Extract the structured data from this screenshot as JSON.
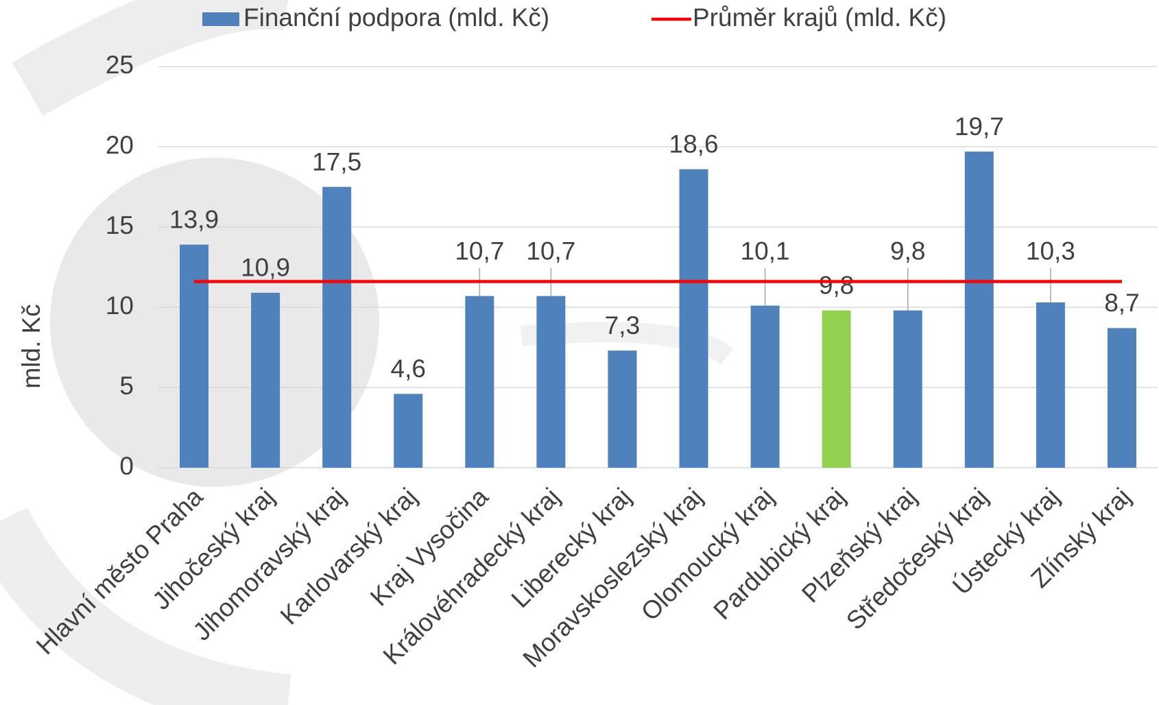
{
  "chart_data": {
    "type": "bar",
    "y_label": "mld. Kč",
    "categories": [
      "Hlavní město Praha",
      "Jihočeský kraj",
      "Jihomoravský kraj",
      "Karlovarský kraj",
      "Kraj Vysočina",
      "Královéhradecký kraj",
      "Liberecký kraj",
      "Moravskoslezský kraj",
      "Olomoucký kraj",
      "Pardubický kraj",
      "Plzeňský kraj",
      "Středočeský kraj",
      "Ústecký kraj",
      "Zlínský kraj"
    ],
    "series": [
      {
        "name": "Finanční podpora (mld. Kč)",
        "type": "bar",
        "color": "#4f81bd",
        "colors": [
          "#4f81bd",
          "#4f81bd",
          "#4f81bd",
          "#4f81bd",
          "#4f81bd",
          "#4f81bd",
          "#4f81bd",
          "#4f81bd",
          "#4f81bd",
          "#92d050",
          "#4f81bd",
          "#4f81bd",
          "#4f81bd",
          "#4f81bd"
        ],
        "values": [
          13.9,
          10.9,
          17.5,
          4.6,
          10.7,
          10.7,
          7.3,
          18.6,
          10.1,
          9.8,
          9.8,
          19.7,
          10.3,
          8.7
        ],
        "value_labels": [
          "13,9",
          "10,9",
          "17,5",
          "4,6",
          "10,7",
          "10,7",
          "7,3",
          "18,6",
          "10,1",
          "9,8",
          "9,8",
          "19,7",
          "10,3",
          "8,7"
        ]
      },
      {
        "name": "Průměr krajů (mld. Kč)",
        "type": "line",
        "color": "#ff0000",
        "values": [
          11.6,
          11.6,
          11.6,
          11.6,
          11.6,
          11.6,
          11.6,
          11.6,
          11.6,
          11.6,
          11.6,
          11.6,
          11.6,
          11.6
        ]
      }
    ],
    "ylim": [
      0,
      25
    ],
    "yticks": [
      0,
      5,
      10,
      15,
      20,
      25
    ],
    "grid": true,
    "legend": "top"
  }
}
